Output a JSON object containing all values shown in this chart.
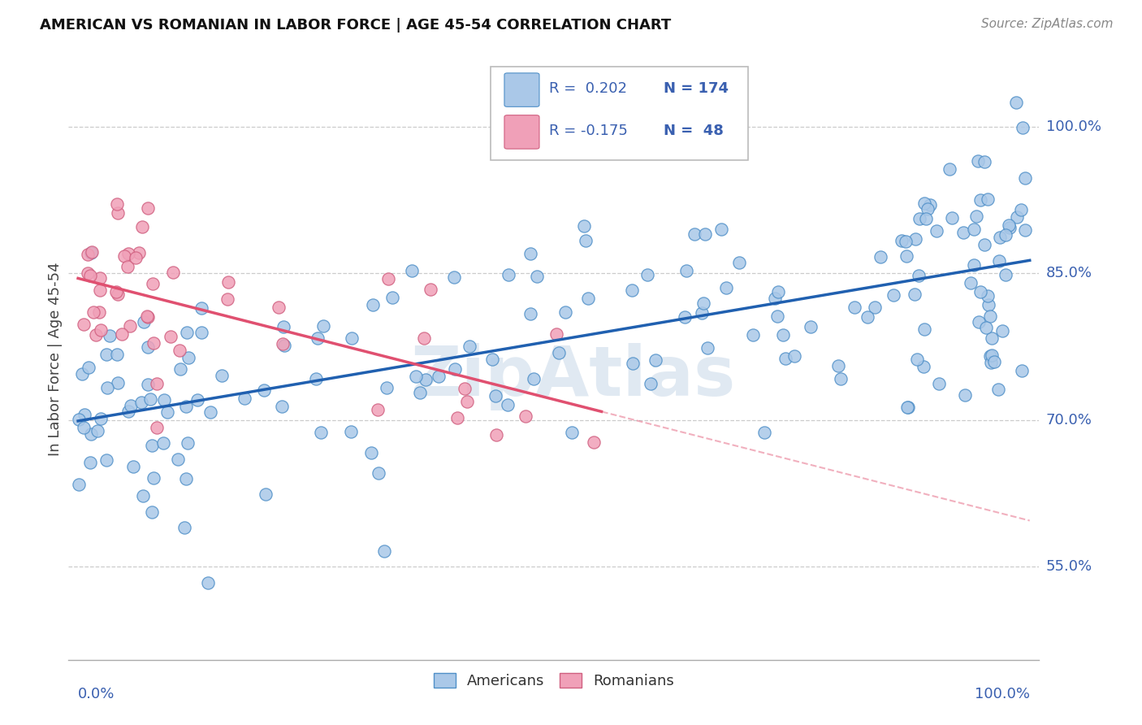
{
  "title": "AMERICAN VS ROMANIAN IN LABOR FORCE | AGE 45-54 CORRELATION CHART",
  "source": "Source: ZipAtlas.com",
  "ylabel": "In Labor Force | Age 45-54",
  "ytick_labels": [
    "55.0%",
    "70.0%",
    "85.0%",
    "100.0%"
  ],
  "ytick_values": [
    0.55,
    0.7,
    0.85,
    1.0
  ],
  "xlim": [
    -0.01,
    1.01
  ],
  "ylim": [
    0.455,
    1.07
  ],
  "r_american": 0.202,
  "n_american": 174,
  "r_romanian": -0.175,
  "n_romanian": 48,
  "american_face_color": "#aac8e8",
  "american_edge_color": "#5090c8",
  "romanian_face_color": "#f0a0b8",
  "romanian_edge_color": "#d06080",
  "american_line_color": "#2060b0",
  "romanian_line_color": "#e05070",
  "text_color": "#3a60b0",
  "grid_color": "#cccccc",
  "background": "white",
  "legend_r_am": "R =  0.202",
  "legend_n_am": "N = 174",
  "legend_r_ro": "R = -0.175",
  "legend_n_ro": "N =  48"
}
